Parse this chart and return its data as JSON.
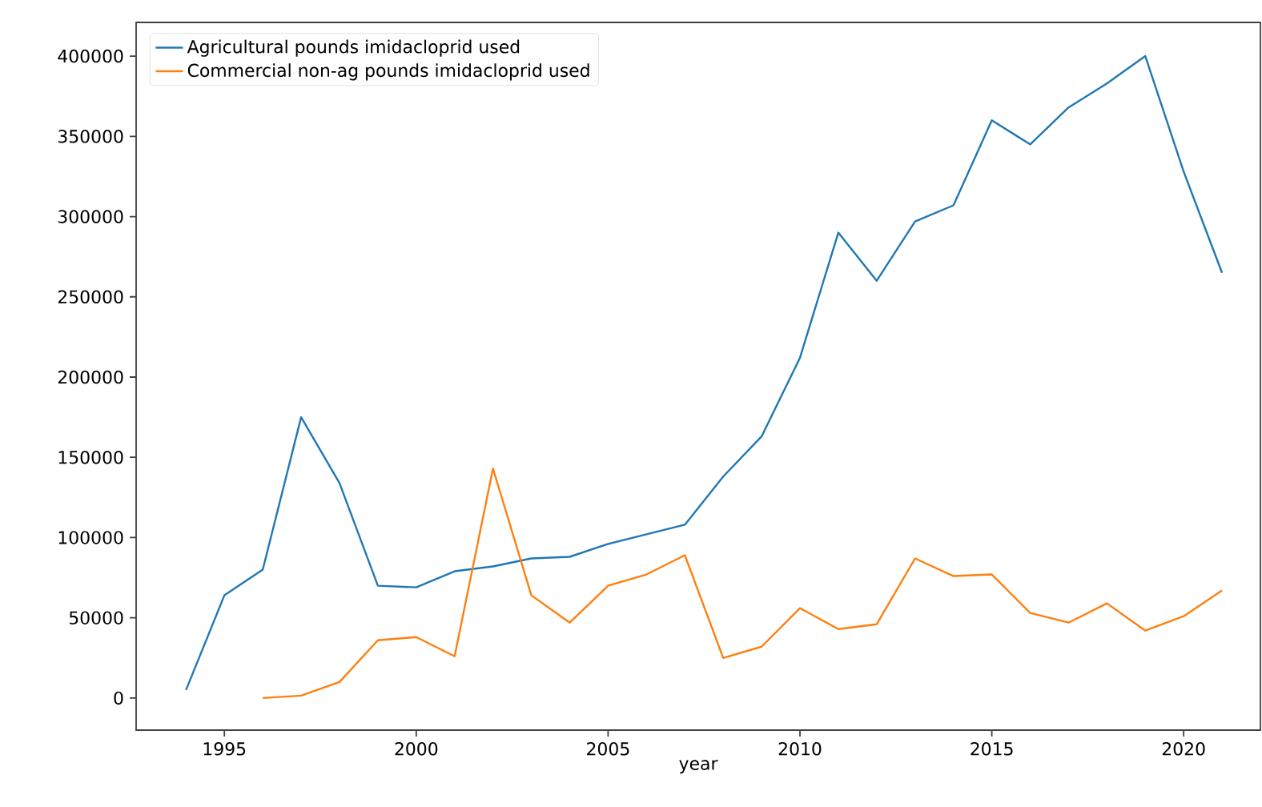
{
  "chart_data": {
    "type": "line",
    "xlabel": "year",
    "xlim": [
      1992.7,
      2022
    ],
    "ylim": [
      -20000,
      421000
    ],
    "xticks": [
      1995,
      2000,
      2005,
      2010,
      2015,
      2020
    ],
    "yticks": [
      0,
      50000,
      100000,
      150000,
      200000,
      250000,
      300000,
      350000,
      400000
    ],
    "grid": false,
    "legend": "top left",
    "series": [
      {
        "name": "Agricultural pounds imidacloprid used",
        "color": "#1f77b4",
        "x": [
          1994,
          1995,
          1996,
          1997,
          1998,
          1999,
          2000,
          2001,
          2002,
          2003,
          2004,
          2005,
          2006,
          2007,
          2008,
          2009,
          2010,
          2011,
          2012,
          2013,
          2014,
          2015,
          2016,
          2017,
          2018,
          2019,
          2020,
          2021
        ],
        "values": [
          5000,
          64000,
          80000,
          175000,
          134000,
          70000,
          69000,
          79000,
          82000,
          87000,
          88000,
          96000,
          102000,
          108000,
          138000,
          163000,
          212000,
          290000,
          260000,
          297000,
          307000,
          360000,
          345000,
          368000,
          383000,
          400000,
          328000,
          265000
        ]
      },
      {
        "name": "Commercial non-ag pounds imidacloprid used",
        "color": "#ff7f0e",
        "x": [
          1996,
          1997,
          1998,
          1999,
          2000,
          2001,
          2002,
          2003,
          2004,
          2005,
          2006,
          2007,
          2008,
          2009,
          2010,
          2011,
          2012,
          2013,
          2014,
          2015,
          2016,
          2017,
          2018,
          2019,
          2020,
          2021
        ],
        "values": [
          0,
          1500,
          10000,
          36000,
          38000,
          26000,
          143000,
          64000,
          47000,
          70000,
          77000,
          89000,
          25000,
          32000,
          56000,
          43000,
          46000,
          87000,
          76000,
          77000,
          53000,
          47000,
          59000,
          42000,
          51000,
          67000
        ]
      }
    ]
  }
}
